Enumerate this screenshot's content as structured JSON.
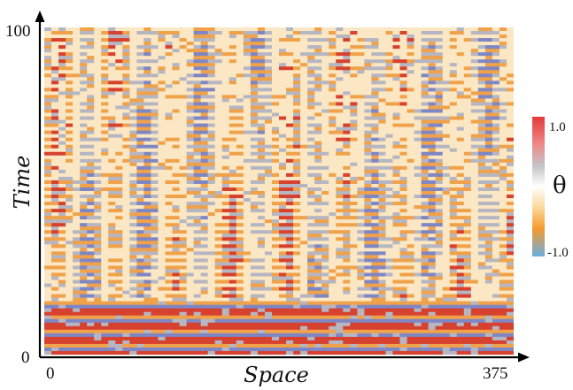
{
  "chart_data": {
    "type": "heatmap",
    "title": "",
    "xlabel": "Space",
    "ylabel": "Time",
    "x_ticks": [
      "0",
      "375"
    ],
    "y_ticks": [
      "0",
      "100"
    ],
    "xlim": [
      0,
      375
    ],
    "ylim": [
      0,
      100
    ],
    "colorbar": {
      "title": "θ",
      "min_label": "-1.0",
      "max_label": "1.0",
      "range": [
        -1.0,
        1.0
      ],
      "stops": [
        {
          "value": -1.0,
          "color": "#6aaee0"
        },
        {
          "value": -0.6,
          "color": "#f79a2e"
        },
        {
          "value": -0.3,
          "color": "#fcd79a"
        },
        {
          "value": 0.0,
          "color": "#ffffff"
        },
        {
          "value": 0.3,
          "color": "#c4c4c8"
        },
        {
          "value": 0.6,
          "color": "#ee8a8a"
        },
        {
          "value": 1.0,
          "color": "#e53a3a"
        }
      ]
    },
    "field_description_colors": {
      "red": "#d7412f",
      "orange": "#f0a24a",
      "cream": "#fbe7c3",
      "blue": "#7f86c4",
      "grey": "#b6b6c2"
    },
    "grid": false,
    "colorbar_position": "right"
  }
}
